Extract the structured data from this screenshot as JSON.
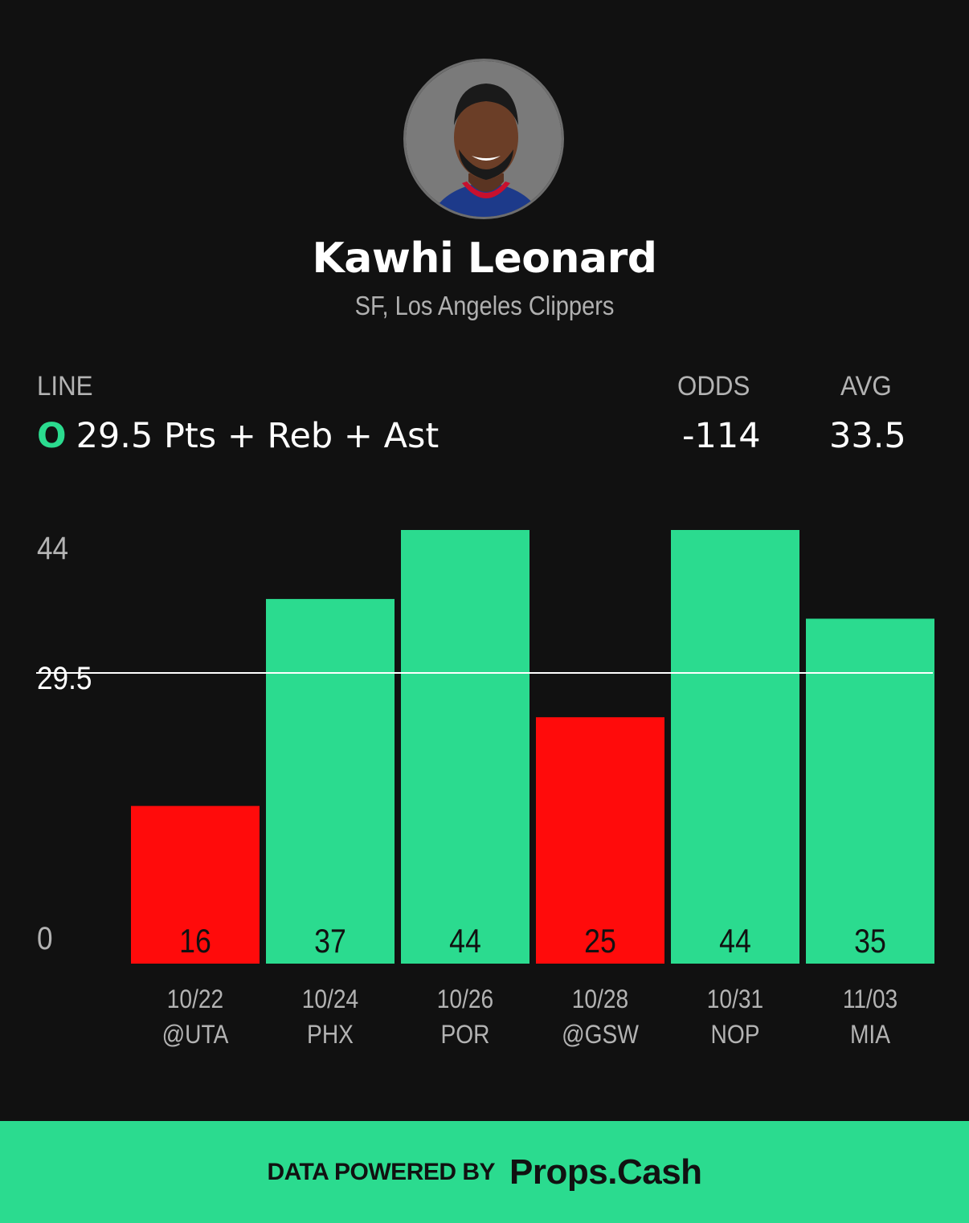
{
  "player": {
    "name": "Kawhi Leonard",
    "position_team": "SF, Los Angeles Clippers"
  },
  "stats": {
    "line_label": "LINE",
    "over_marker": "O",
    "line_value": "29.5 Pts + Reb + Ast",
    "odds_label": "ODDS",
    "odds_value": "-114",
    "avg_label": "AVG",
    "avg_value": "33.5"
  },
  "colors": {
    "background": "#111111",
    "over": "#2bdb8f",
    "under": "#ff0b0b",
    "line": "#ffffff"
  },
  "chart_data": {
    "type": "bar",
    "categories": [
      [
        "10/22",
        "@UTA"
      ],
      [
        "10/24",
        "PHX"
      ],
      [
        "10/26",
        "POR"
      ],
      [
        "10/28",
        "@GSW"
      ],
      [
        "10/31",
        "NOP"
      ],
      [
        "11/03",
        "MIA"
      ]
    ],
    "values": [
      16,
      37,
      44,
      25,
      44,
      35
    ],
    "y_ticks": [
      "44",
      "29.5",
      "0"
    ],
    "ylim": [
      0,
      44
    ],
    "reference_line": 29.5
  },
  "footer": {
    "prefix": "DATA POWERED BY",
    "brand": "Props.Cash"
  }
}
